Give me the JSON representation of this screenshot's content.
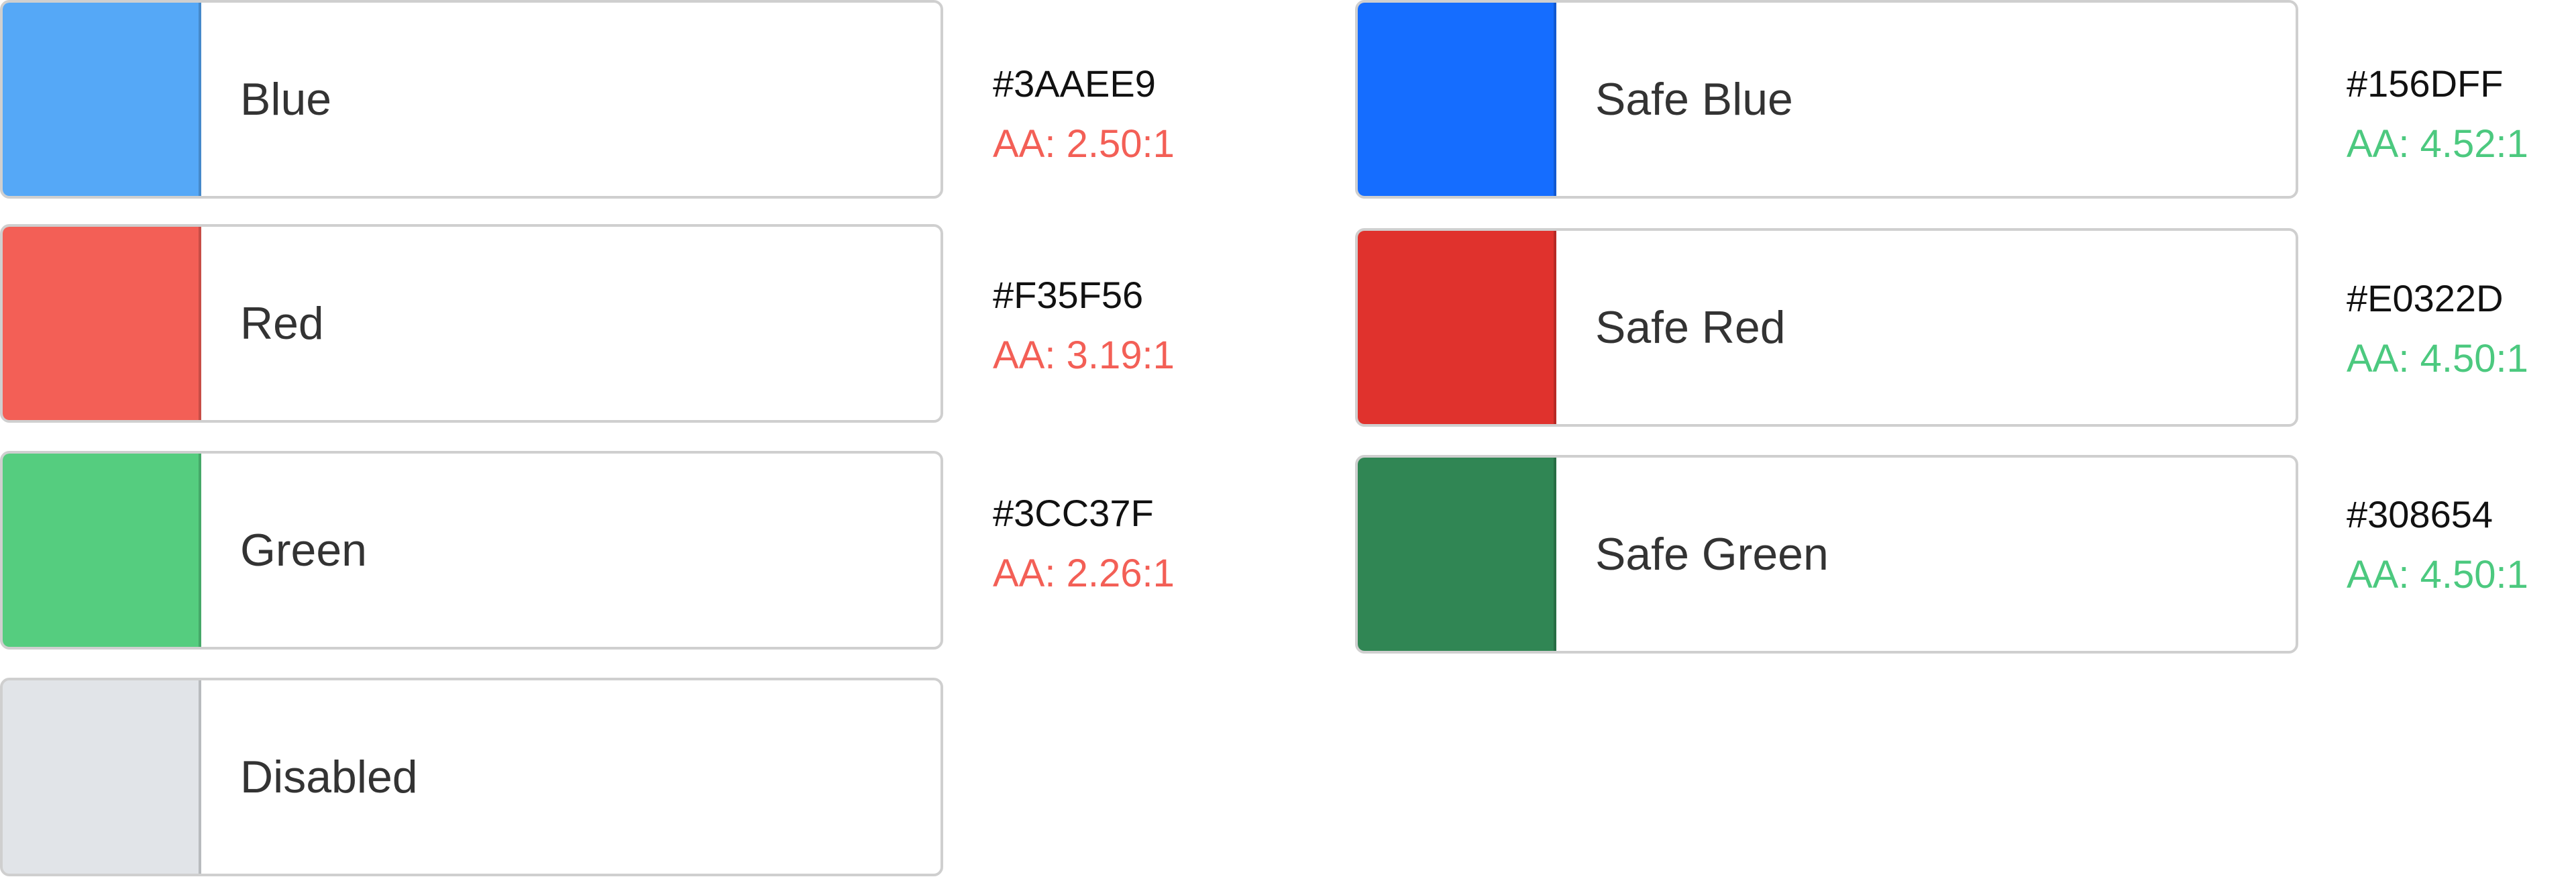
{
  "colors": {
    "fail": "#F35F56",
    "pass": "#4CC97F"
  },
  "swatches": [
    {
      "label": "Blue",
      "hex": "#3AAEE9",
      "fill": "#55A8F7",
      "ratio": "AA: 2.50:1",
      "pass": false
    },
    {
      "label": "Red",
      "hex": "#F35F56",
      "fill": "#F35F56",
      "ratio": "AA: 3.19:1",
      "pass": false
    },
    {
      "label": "Green",
      "hex": "#3CC37F",
      "fill": "#55CD7F",
      "ratio": "AA: 2.26:1",
      "pass": false
    },
    {
      "label": "Disabled",
      "fill": "#E1E4E8"
    },
    {
      "label": "Safe Blue",
      "hex": "#156DFF",
      "fill": "#156DFF",
      "ratio": "AA: 4.52:1",
      "pass": true
    },
    {
      "label": "Safe Red",
      "hex": "#E0322D",
      "fill": "#E0322D",
      "ratio": "AA: 4.50:1",
      "pass": true
    },
    {
      "label": "Safe Green",
      "hex": "#308654",
      "fill": "#308654",
      "ratio": "AA: 4.50:1",
      "pass": true
    }
  ]
}
